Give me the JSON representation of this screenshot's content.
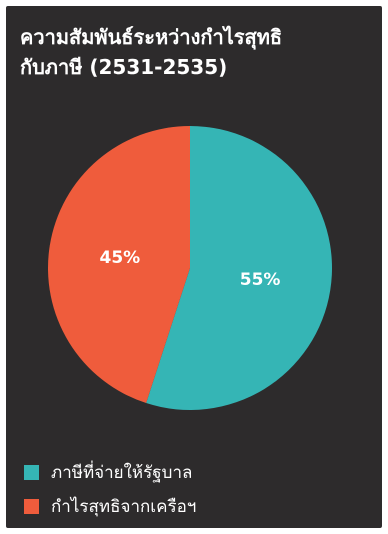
{
  "chart_data": {
    "type": "pie",
    "title": "ความสัมพันธ์ระหว่างกำไรสุทธิ",
    "subtitle": "กับภาษี (2531-2535)",
    "slices": [
      {
        "label": "ภาษีที่จ่ายให้รัฐบาล",
        "value": 55,
        "value_label": "55%",
        "color": "#35b5b5"
      },
      {
        "label": "กำไรสุทธิจากเครือฯ",
        "value": 45,
        "value_label": "45%",
        "color": "#ef5c3c"
      }
    ],
    "legend_position": "bottom-left",
    "background": "#2d2b2c"
  }
}
